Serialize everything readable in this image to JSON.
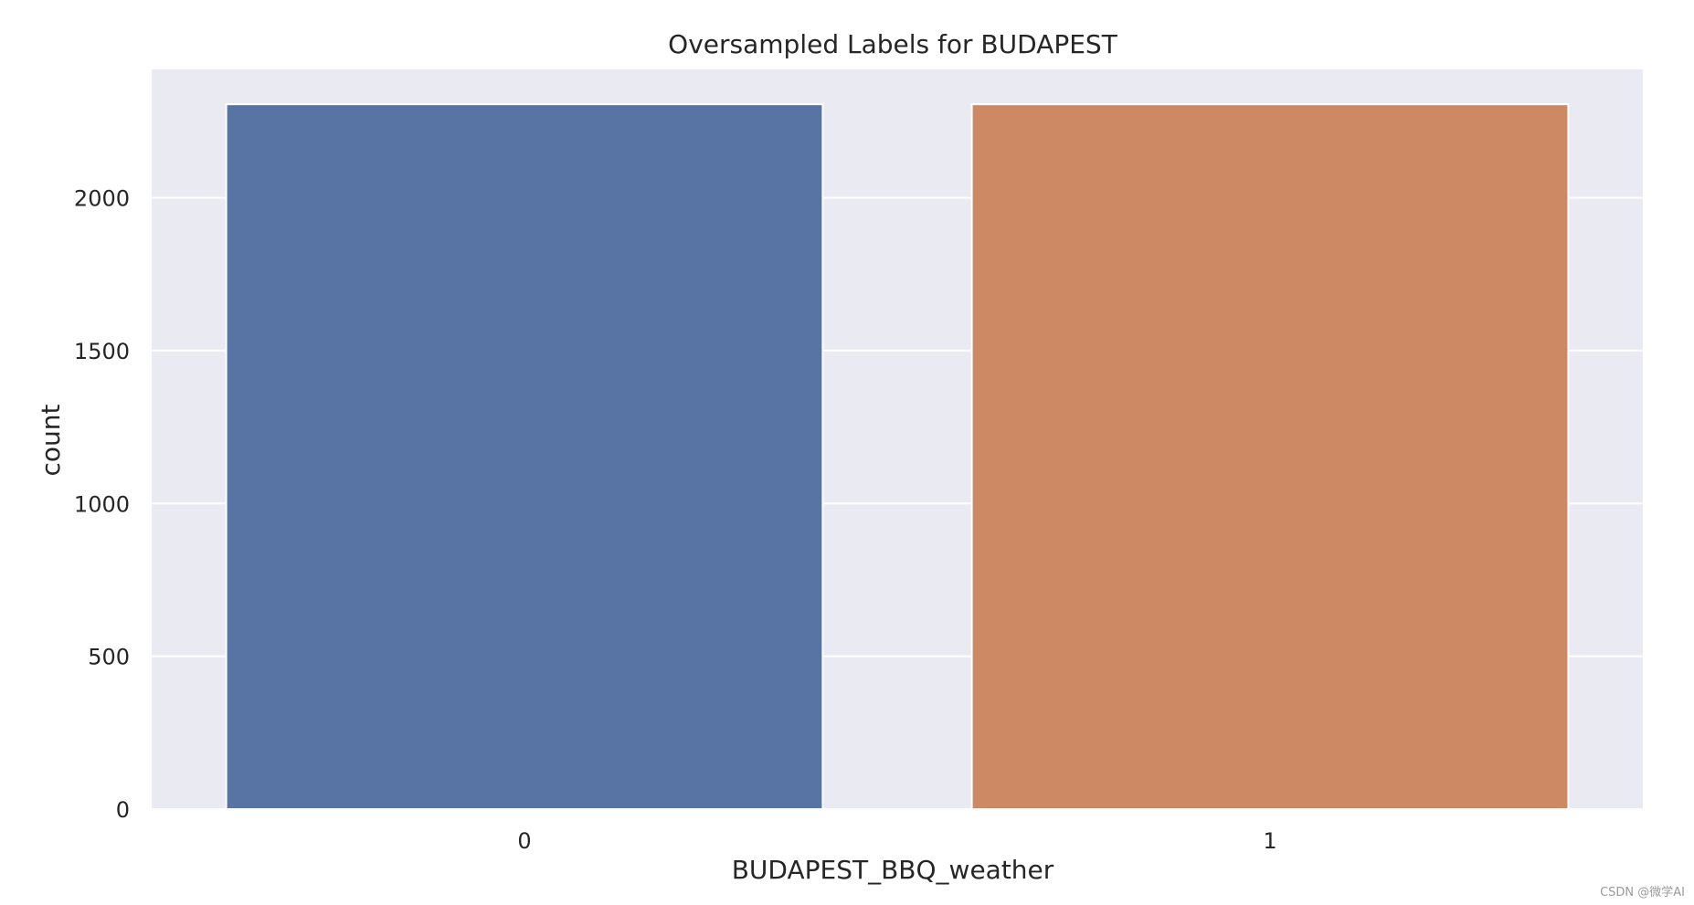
{
  "chart_data": {
    "type": "bar",
    "title": "Oversampled Labels for BUDAPEST",
    "xlabel": "BUDAPEST_BBQ_weather",
    "ylabel": "count",
    "categories": [
      "0",
      "1"
    ],
    "values": [
      2306,
      2306
    ],
    "ylim": [
      0,
      2420
    ],
    "yticks": [
      0,
      500,
      1000,
      1500,
      2000
    ],
    "grid": true,
    "colors": [
      "#5874a5",
      "#cc8963"
    ],
    "background": "#eaeaf2",
    "gridColor": "#ffffff"
  },
  "watermark": "CSDN @微学AI"
}
